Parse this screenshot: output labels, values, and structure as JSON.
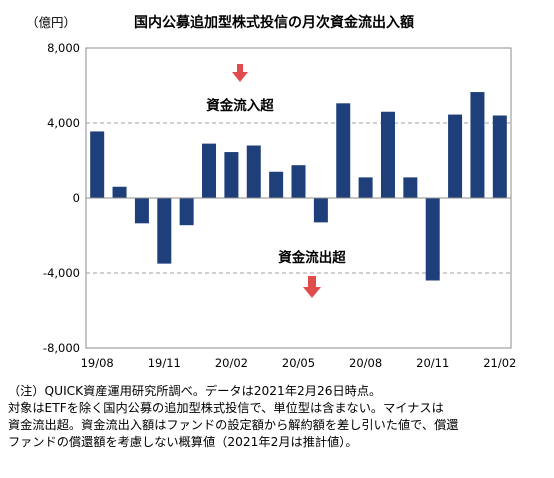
{
  "chart_data": {
    "type": "bar",
    "title": "国内公募追加型株式投信の月次資金流出入額",
    "unit_label": "（億円）",
    "ylim": [
      -8000,
      8000
    ],
    "y_ticks": [
      "8,000",
      "4,000",
      "0",
      "-4,000",
      "-8,000"
    ],
    "grid": "dashed at ±4,000",
    "color": "#1f3f7a",
    "arrow_color": "#e04c4c",
    "inflow_label": "資金流入超",
    "outflow_label": "資金流出超",
    "x_tick_labels": [
      "19/08",
      "19/11",
      "20/02",
      "20/05",
      "20/08",
      "20/11",
      "21/02"
    ],
    "categories": [
      "19/08",
      "19/09",
      "19/10",
      "19/11",
      "19/12",
      "20/01",
      "20/02",
      "20/03",
      "20/04",
      "20/05",
      "20/06",
      "20/07",
      "20/08",
      "20/09",
      "20/10",
      "20/11",
      "20/12",
      "21/01",
      "21/02"
    ],
    "values": [
      3550,
      600,
      -1350,
      -3500,
      -1450,
      2900,
      2450,
      2800,
      1400,
      1750,
      -1300,
      5050,
      1100,
      4600,
      1100,
      -4400,
      4450,
      5650,
      4400
    ]
  },
  "note": {
    "lines": [
      "（注）QUICK資産運用研究所調べ。データは2021年2月26日時点。",
      "対象はETFを除く国内公募の追加型株式投信で、単位型は含まない。マイナスは",
      "資金流出超。資金流出入額はファンドの設定額から解約額を差し引いた値で、償還",
      "ファンドの償還額を考慮しない概算値（2021年2月は推計値）。"
    ]
  }
}
